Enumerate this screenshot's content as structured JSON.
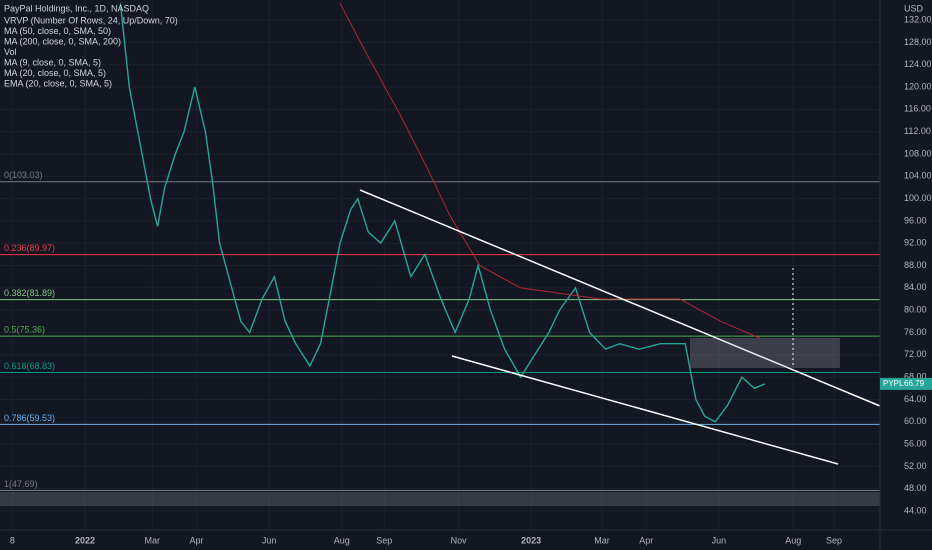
{
  "chart_data": {
    "type": "line",
    "title": "PayPal Holdings, Inc., 1D, NASDAQ",
    "studies": [
      "VRVP (Number Of Rows, 24, Up/Down, 70)",
      "MA (50, close, 0, SMA, 50)",
      "Vol",
      "MA (9, close, 0, SMA, 5)",
      "MA (20, close, 0, SMA, 5)",
      "EMA (20, close, 0, SMA, 5)"
    ],
    "currency": "USD",
    "xlim": [
      -7,
      490
    ],
    "xticks": [
      {
        "value": 0,
        "label": "8"
      },
      {
        "value": 41,
        "label": "2022"
      },
      {
        "value": 79,
        "label": "Mar"
      },
      {
        "value": 104,
        "label": "Apr"
      },
      {
        "value": 145,
        "label": "Jun"
      },
      {
        "value": 186,
        "label": "Aug"
      },
      {
        "value": 210,
        "label": "Sep"
      },
      {
        "value": 252,
        "label": "Nov"
      },
      {
        "value": 293,
        "label": "2023"
      },
      {
        "value": 333,
        "label": "Mar"
      },
      {
        "value": 358,
        "label": "Apr"
      },
      {
        "value": 399,
        "label": "Jun"
      },
      {
        "value": 441,
        "label": "Aug"
      },
      {
        "value": 464,
        "label": "Sep"
      }
    ],
    "ylim": [
      40.6,
      135.6
    ],
    "yticks": [
      {
        "value": 44,
        "label": "44.00"
      },
      {
        "value": 48,
        "label": "48.00"
      },
      {
        "value": 52,
        "label": "52.00"
      },
      {
        "value": 56,
        "label": "56.00"
      },
      {
        "value": 60,
        "label": "60.00"
      },
      {
        "value": 64,
        "label": "64.00"
      },
      {
        "value": 68,
        "label": "68.00"
      },
      {
        "value": 72,
        "label": "72.00"
      },
      {
        "value": 76,
        "label": "76.00"
      },
      {
        "value": 80,
        "label": "80.00"
      },
      {
        "value": 84,
        "label": "84.00"
      },
      {
        "value": 88,
        "label": "88.00"
      },
      {
        "value": 92,
        "label": "92.00"
      },
      {
        "value": 96,
        "label": "96.00"
      },
      {
        "value": 100,
        "label": "100.00"
      },
      {
        "value": 104,
        "label": "104.00"
      },
      {
        "value": 108,
        "label": "108.00"
      },
      {
        "value": 112,
        "label": "112.00"
      },
      {
        "value": 116,
        "label": "116.00"
      },
      {
        "value": 120,
        "label": "120.00"
      },
      {
        "value": 124,
        "label": "124.00"
      },
      {
        "value": 128,
        "label": "128.00"
      },
      {
        "value": 132,
        "label": "132.00"
      }
    ],
    "grid": true,
    "series": [
      {
        "name": "PYPL",
        "color": "#26a69a",
        "x": [
          61,
          66,
          72,
          78,
          82,
          86,
          92,
          97,
          103,
          109,
          113,
          117,
          123,
          129,
          134,
          141,
          148,
          154,
          160,
          168,
          174,
          179,
          185,
          191,
          195,
          201,
          208,
          216,
          225,
          233,
          242,
          250,
          258,
          263,
          270,
          278,
          287,
          295,
          303,
          309,
          318,
          326,
          335,
          343,
          354,
          366,
          380,
          386,
          391,
          397,
          404,
          412,
          419,
          425
        ],
        "values": [
          135,
          120,
          110,
          100,
          95,
          102,
          108,
          112,
          120,
          112,
          103,
          92,
          85,
          78,
          76,
          82,
          86,
          78,
          74,
          70,
          74,
          82,
          92,
          98,
          100,
          94,
          92,
          96,
          86,
          90,
          82,
          76,
          82,
          88,
          80,
          73,
          68,
          72,
          76,
          80,
          84,
          76,
          73,
          74,
          73,
          74,
          74,
          64,
          61,
          60,
          63,
          68,
          66,
          66.79
        ]
      },
      {
        "name": "MA (200, close, 0, SMA, 200)",
        "color": "#b22833",
        "x": [
          185,
          200,
          219,
          235,
          247,
          264,
          287,
          310,
          332,
          355,
          377,
          400,
          422
        ],
        "values": [
          135,
          126,
          115,
          105,
          97,
          88,
          84,
          83,
          82,
          82,
          82,
          78,
          75
        ]
      }
    ],
    "last_price": {
      "label": "PYPL",
      "value": 66.79
    },
    "fib_levels": [
      {
        "label": "0(103.03)",
        "value": 103.03,
        "color": "#787b86"
      },
      {
        "label": "0.236(89.97)",
        "value": 89.97,
        "color": "#f23645"
      },
      {
        "label": "0.382(81.89)",
        "value": 81.89,
        "color": "#81c784"
      },
      {
        "label": "0.5(75.36)",
        "value": 75.36,
        "color": "#4caf50"
      },
      {
        "label": "0.618(68.83)",
        "value": 68.83,
        "color": "#089981"
      },
      {
        "label": "0.786(59.53)",
        "value": 59.53,
        "color": "#64b5f6"
      },
      {
        "label": "1(47.69)",
        "value": 47.69,
        "color": "#787b86"
      }
    ]
  }
}
